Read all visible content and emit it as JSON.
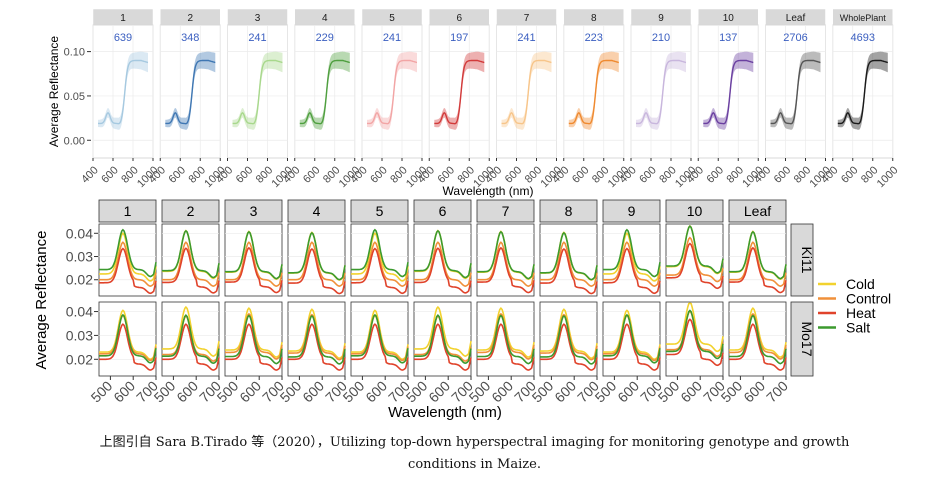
{
  "chart_data": [
    {
      "type": "line",
      "ylabel": "Average Reflectance",
      "xlabel": "Wavelength (nm)",
      "xlim": [
        400,
        1000
      ],
      "xticks": [
        400,
        600,
        800,
        1000
      ],
      "ylim": [
        -0.02,
        0.13
      ],
      "yticks": [
        0.0,
        0.05,
        0.1
      ],
      "ytick_labels": [
        "0.00",
        "0.05",
        "0.10"
      ],
      "panel_label": "",
      "panels": [
        {
          "label": "1",
          "count": "639",
          "color": "#a6c9e0"
        },
        {
          "label": "2",
          "count": "348",
          "color": "#3f77b3"
        },
        {
          "label": "3",
          "count": "241",
          "color": "#a8d88c"
        },
        {
          "label": "4",
          "count": "229",
          "color": "#4f9f3f"
        },
        {
          "label": "5",
          "count": "241",
          "color": "#f2a5a5"
        },
        {
          "label": "6",
          "count": "197",
          "color": "#d23a3a"
        },
        {
          "label": "7",
          "count": "241",
          "color": "#f7c58a"
        },
        {
          "label": "8",
          "count": "223",
          "color": "#ef8a30"
        },
        {
          "label": "9",
          "count": "210",
          "color": "#c8b6dd"
        },
        {
          "label": "10",
          "count": "137",
          "color": "#6a3fa0"
        },
        {
          "label": "Leaf",
          "count": "2706",
          "color": "#555555"
        },
        {
          "label": "WholePlant",
          "count": "4693",
          "color": "#1a1a1a"
        }
      ]
    },
    {
      "type": "line",
      "ylabel": "Average Reflectance",
      "xlabel": "Wavelength (nm)",
      "xlim": [
        450,
        700
      ],
      "xticks": [
        500,
        600,
        700
      ],
      "ylim": [
        0.013,
        0.044
      ],
      "yticks": [
        0.02,
        0.03,
        0.04
      ],
      "ytick_labels": [
        "0.02",
        "0.03",
        "0.04"
      ],
      "panel_label": "",
      "columns": [
        "1",
        "2",
        "3",
        "4",
        "5",
        "6",
        "7",
        "8",
        "9",
        "10",
        "Leaf"
      ],
      "rows": [
        "Ki11",
        "Mo17"
      ],
      "series": [
        {
          "name": "Cold",
          "color": "#f2d22e"
        },
        {
          "name": "Control",
          "color": "#f0903a"
        },
        {
          "name": "Heat",
          "color": "#e0432b"
        },
        {
          "name": "Salt",
          "color": "#3c9a2e"
        }
      ]
    }
  ],
  "caption": {
    "line1": "上图引自 Sara B.Tirado 等（2020），Utilizing top-down hyperspectral imaging for monitoring genotype and growth",
    "line2": "conditions in Maize."
  }
}
